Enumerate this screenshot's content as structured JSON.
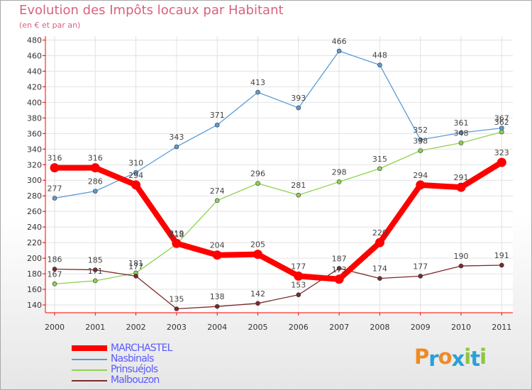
{
  "title": "Evolution des Impôts locaux par Habitant",
  "subtitle": "(en € et par an)",
  "brand": {
    "letters": [
      "P",
      "r",
      "o",
      "x",
      "i",
      "t",
      "i"
    ],
    "colors": [
      "#f08a24",
      "#2aa0d8",
      "#f08a24",
      "#2aa0d8",
      "#8cc63f",
      "#2aa0d8",
      "#8cc63f"
    ]
  },
  "colors": {
    "title": "#d9627e",
    "legend_text": "#5a5aff",
    "axis": "#ff0000",
    "grid": "#e2e2e2"
  },
  "chart_data": {
    "type": "line",
    "title": "Evolution des Impôts locaux par Habitant",
    "subtitle": "(en € et par an)",
    "x": [
      "2000",
      "2001",
      "2002",
      "2003",
      "2004",
      "2005",
      "2006",
      "2007",
      "2008",
      "2009",
      "2010",
      "2011"
    ],
    "yticks": [
      140,
      160,
      180,
      200,
      220,
      240,
      260,
      280,
      300,
      320,
      340,
      360,
      380,
      400,
      420,
      440,
      460,
      480
    ],
    "ylim": [
      130,
      485
    ],
    "grid": true,
    "legend_position": "bottom-left",
    "series": [
      {
        "name": "MARCHASTEL",
        "color": "#ff0000",
        "values": [
          316,
          316,
          294,
          219,
          204,
          205,
          177,
          173,
          220,
          294,
          291,
          323
        ],
        "labels": [
          "316",
          "316",
          "294",
          "219",
          "204",
          "205",
          "177",
          "173",
          "220",
          "294",
          "291",
          "323"
        ]
      },
      {
        "name": "Nasbinals",
        "color": "#5b9bd5",
        "values": [
          277,
          286,
          310,
          343,
          371,
          413,
          393,
          466,
          448,
          352,
          361,
          367
        ],
        "labels": [
          "277",
          "286",
          "310",
          "343",
          "371",
          "413",
          "393",
          "466",
          "448",
          "352",
          "361",
          "367"
        ]
      },
      {
        "name": "Prinsuéjols",
        "color": "#8fd14f",
        "values": [
          167,
          171,
          181,
          218,
          274,
          296,
          281,
          298,
          315,
          338,
          348,
          362
        ],
        "labels": [
          "167",
          "171",
          "181",
          "218",
          "274",
          "296",
          "281",
          "298",
          "315",
          "338",
          "348",
          "362"
        ]
      },
      {
        "name": "Malbouzon",
        "color": "#7b2a2a",
        "values": [
          186,
          185,
          177,
          135,
          138,
          142,
          153,
          187,
          174,
          177,
          190,
          191
        ],
        "labels": [
          "186",
          "185",
          "177",
          "135",
          "138",
          "142",
          "153",
          "187",
          "174",
          "177",
          "190",
          "191"
        ]
      }
    ]
  }
}
